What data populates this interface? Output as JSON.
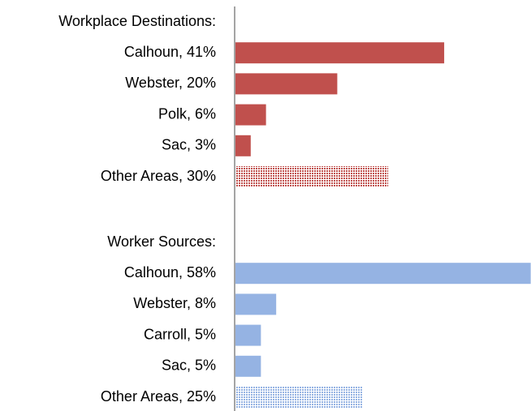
{
  "chart_data": {
    "type": "bar",
    "orientation": "horizontal",
    "groups": [
      {
        "title": "Workplace Destinations:",
        "color": "#c0504d",
        "categories": [
          "Calhoun, 41%",
          "Webster, 20%",
          "Polk, 6%",
          "Sac, 3%",
          "Other Areas, 30%"
        ],
        "values": [
          41,
          20,
          6,
          3,
          30
        ],
        "hatched": [
          false,
          false,
          false,
          false,
          true
        ]
      },
      {
        "title": "Worker Sources:",
        "color": "#95b3e3",
        "categories": [
          "Calhoun, 58%",
          "Webster, 8%",
          "Carroll, 5%",
          "Sac, 5%",
          "Other Areas, 25%"
        ],
        "values": [
          58,
          8,
          5,
          5,
          25
        ],
        "hatched": [
          false,
          false,
          false,
          false,
          true
        ]
      }
    ]
  }
}
